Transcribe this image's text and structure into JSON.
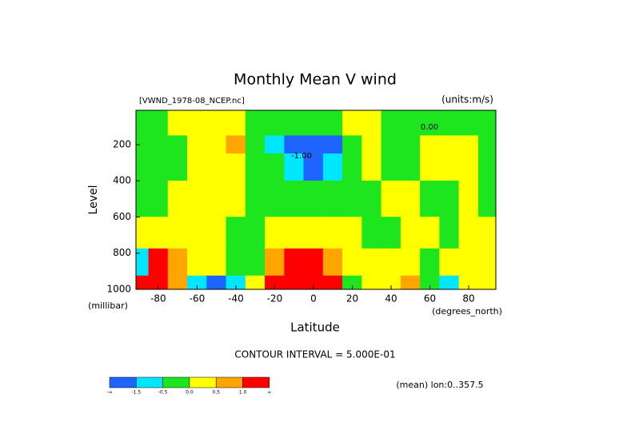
{
  "chart_data": {
    "type": "contourf",
    "title": "Monthly Mean V wind",
    "subtitle": "[VWND_1978-08_NCEP.nc]",
    "units": "(units:m/s)",
    "y_label": "Level",
    "y_unit": "(millibar)",
    "x_label": "Latitude",
    "x_unit": "(degrees_north)",
    "contour_interval": "CONTOUR INTERVAL = 5.000E-01",
    "footnote": "(mean) lon:0..357.5",
    "x": [
      -90,
      -80,
      -70,
      -60,
      -50,
      -40,
      -30,
      -20,
      -10,
      0,
      10,
      20,
      30,
      40,
      50,
      60,
      70,
      80,
      90
    ],
    "y": [
      10,
      100,
      200,
      300,
      500,
      700,
      850,
      1000
    ],
    "values": [
      [
        -0.25,
        -0.25,
        0.25,
        0.25,
        0.25,
        0.25,
        -0.25,
        -0.25,
        -0.25,
        -0.25,
        -0.25,
        0.25,
        0.25,
        -0.25,
        -0.25,
        -0.25,
        -0.25,
        -0.25,
        -0.25
      ],
      [
        -0.25,
        -0.25,
        0.25,
        0.25,
        0.25,
        0.25,
        -0.25,
        -0.25,
        -0.25,
        -0.25,
        -0.25,
        0.25,
        0.25,
        -0.25,
        -0.25,
        -0.25,
        -0.25,
        -0.25,
        -0.25
      ],
      [
        -0.25,
        -0.25,
        -0.25,
        0.25,
        0.25,
        0.75,
        -0.25,
        -1,
        -2,
        -2,
        -2,
        -0.25,
        0.25,
        -0.25,
        -0.25,
        0.25,
        0.25,
        0.25,
        -0.25
      ],
      [
        -0.25,
        -0.25,
        -0.25,
        0.25,
        0.25,
        0.25,
        -0.25,
        -0.25,
        -1,
        -2,
        -1,
        -0.25,
        0.25,
        -0.25,
        -0.25,
        0.25,
        0.25,
        0.25,
        -0.25
      ],
      [
        -0.25,
        -0.25,
        0.25,
        0.25,
        0.25,
        0.25,
        -0.25,
        -0.25,
        -0.25,
        -0.25,
        -0.25,
        -0.25,
        -0.25,
        0.25,
        0.25,
        -0.25,
        -0.25,
        0.25,
        -0.25
      ],
      [
        0.25,
        0.25,
        0.25,
        0.25,
        0.25,
        -0.25,
        -0.25,
        0.25,
        0.25,
        0.25,
        0.25,
        0.25,
        -0.25,
        -0.25,
        0.25,
        0.25,
        -0.25,
        0.25,
        0.25
      ],
      [
        -1,
        1.5,
        0.75,
        0.25,
        0.25,
        -0.25,
        -0.25,
        0.75,
        1.5,
        1.5,
        0.75,
        0.25,
        0.25,
        0.25,
        0.25,
        -0.25,
        0.25,
        0.25,
        0.25
      ],
      [
        1.5,
        1.5,
        0.75,
        -1,
        -2,
        -1,
        0.25,
        1.5,
        1.5,
        1.5,
        1.5,
        -0.25,
        0.25,
        0.25,
        0.75,
        -0.25,
        -1,
        0.25,
        0.25
      ]
    ],
    "xlim": [
      -91.5,
      94
    ],
    "ylim": [
      1000,
      10
    ],
    "xticks": [
      -80,
      -60,
      -40,
      -20,
      0,
      20,
      40,
      60,
      80
    ],
    "yticks": [
      200,
      400,
      600,
      800,
      1000
    ],
    "levels": [
      {
        "value": -1.5,
        "label": "-1.5"
      },
      {
        "value": -0.5,
        "label": "-0.5"
      },
      {
        "value": 0,
        "label": "0.0"
      },
      {
        "value": 0.5,
        "label": "0.5"
      },
      {
        "value": 1,
        "label": "1.0"
      }
    ],
    "colorbar_ends": [
      "-∞",
      "∞"
    ],
    "colors": [
      "#1e64ff",
      "#00e6ff",
      "#1ee61e",
      "#ffff00",
      "#ffa500",
      "#ff0000"
    ],
    "contour_labels": [
      "0.00",
      "-1.00"
    ]
  }
}
